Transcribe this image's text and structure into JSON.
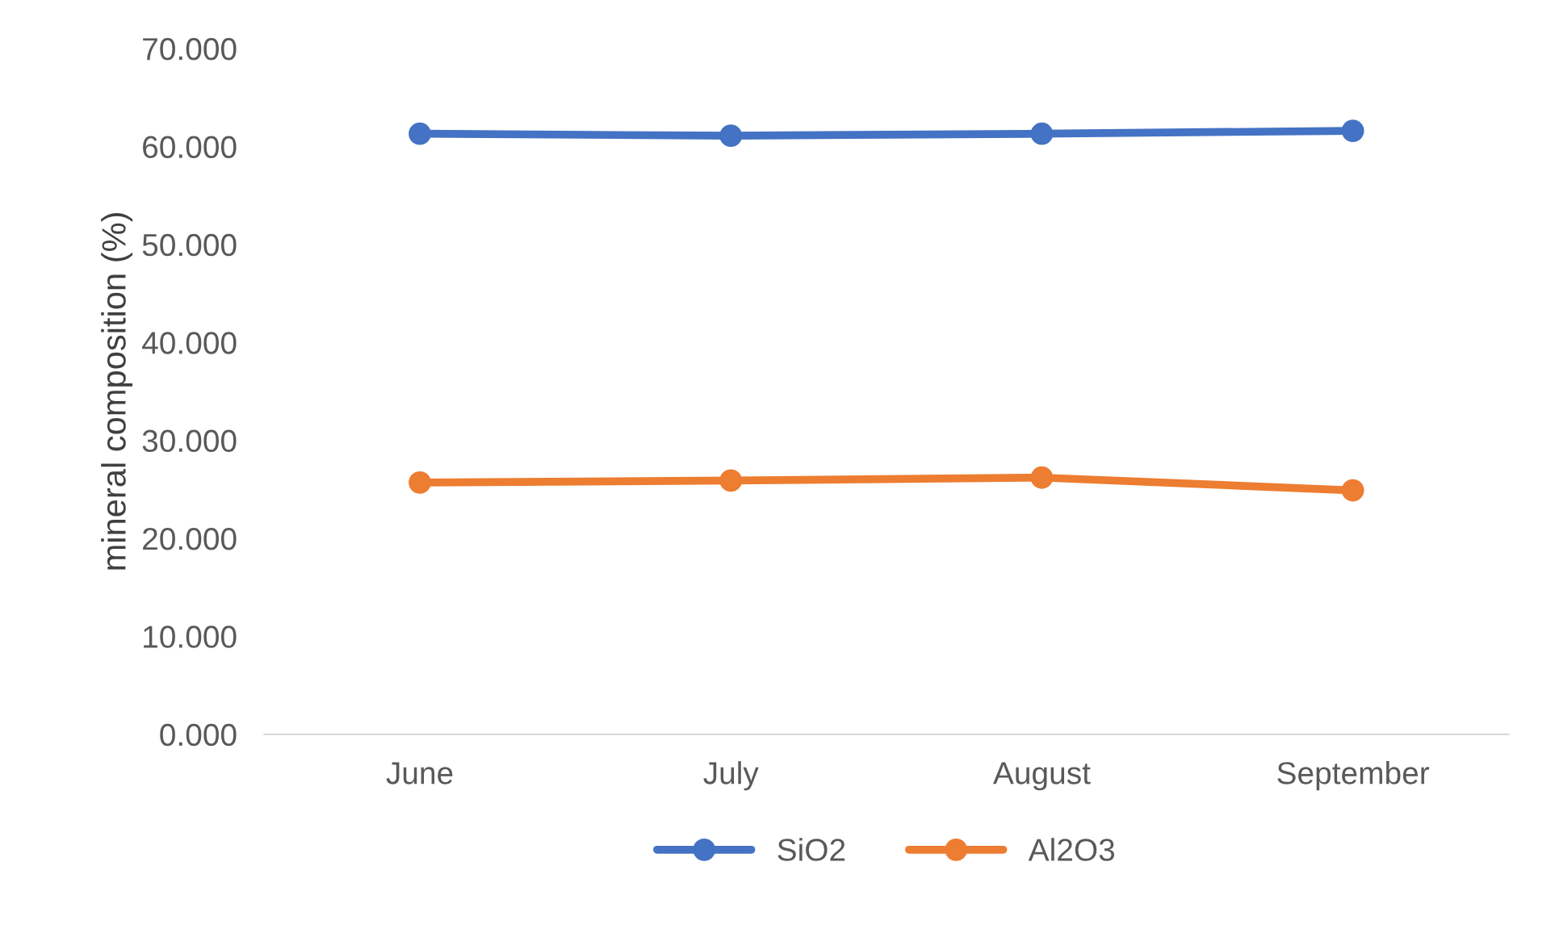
{
  "chart_data": {
    "type": "line",
    "ylabel": "mineral composition (%)",
    "categories": [
      "June",
      "July",
      "August",
      "September"
    ],
    "series": [
      {
        "name": "SiO2",
        "color": "#4472c4",
        "values": [
          61.3,
          61.1,
          61.3,
          61.6
        ]
      },
      {
        "name": "Al2O3",
        "color": "#ed7d31",
        "values": [
          25.7,
          25.9,
          26.2,
          24.9
        ]
      }
    ],
    "ylim": [
      0,
      70
    ],
    "yticks": [
      {
        "value": 0,
        "label": "0.000"
      },
      {
        "value": 10,
        "label": "10.000"
      },
      {
        "value": 20,
        "label": "20.000"
      },
      {
        "value": 30,
        "label": "30.000"
      },
      {
        "value": 40,
        "label": "40.000"
      },
      {
        "value": 50,
        "label": "50.000"
      },
      {
        "value": 60,
        "label": "60.000"
      },
      {
        "value": 70,
        "label": "70.000"
      }
    ],
    "grid": false,
    "legend": "bottom",
    "marker": "circle",
    "line_style": "solid"
  }
}
